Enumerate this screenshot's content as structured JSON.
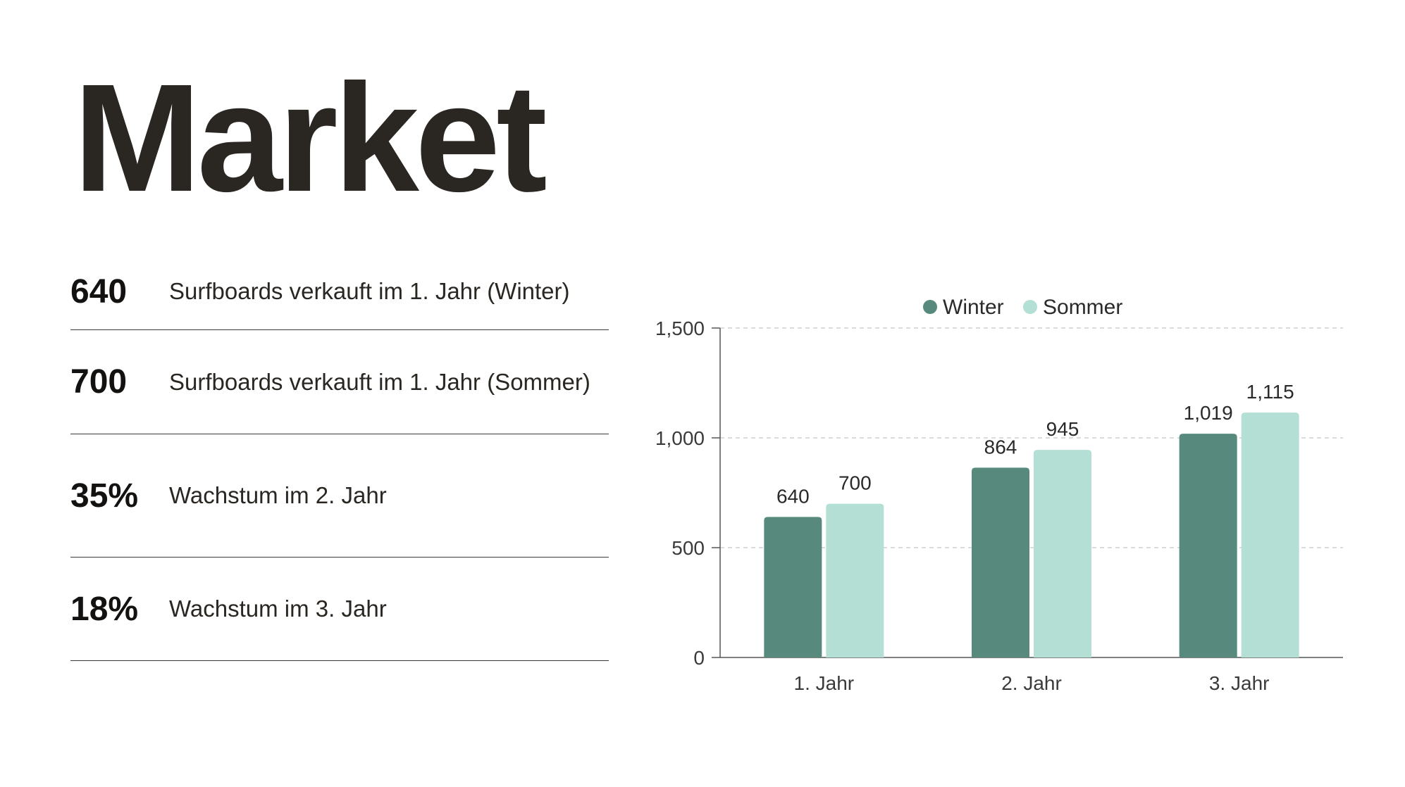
{
  "title": "Market",
  "stats": [
    {
      "value": "640",
      "label": "Surfboards verkauft im 1. Jahr (Winter)"
    },
    {
      "value": "700",
      "label": "Surfboards verkauft im 1. Jahr (Sommer)"
    },
    {
      "value": "35%",
      "label": "Wachstum im 2. Jahr"
    },
    {
      "value": "18%",
      "label": "Wachstum im 3. Jahr"
    }
  ],
  "chart_data": {
    "type": "bar",
    "title": "",
    "xlabel": "",
    "ylabel": "",
    "categories": [
      "1. Jahr",
      "2. Jahr",
      "3. Jahr"
    ],
    "series": [
      {
        "name": "Winter",
        "values": [
          640,
          864,
          1019
        ],
        "labels": [
          "640",
          "864",
          "1,019"
        ],
        "color": "#578a7c"
      },
      {
        "name": "Sommer",
        "values": [
          700,
          945,
          1115
        ],
        "labels": [
          "700",
          "945",
          "1,115"
        ],
        "color": "#b3dfd4"
      }
    ],
    "ylim": [
      0,
      1500
    ],
    "yticks": [
      0,
      500,
      1000,
      1500
    ],
    "ytick_labels": [
      "0",
      "500",
      "1,000",
      "1,500"
    ],
    "grid": true,
    "legend": "top-center"
  }
}
